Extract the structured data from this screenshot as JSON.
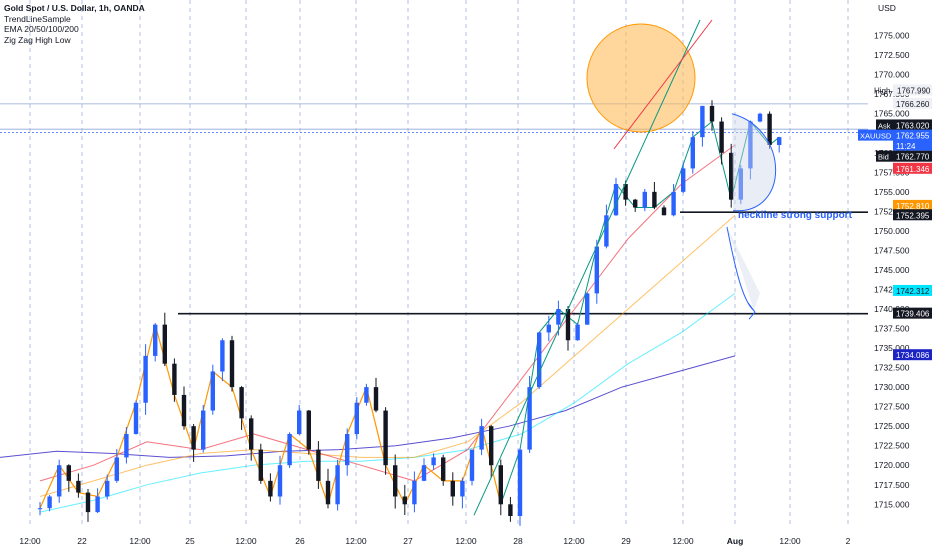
{
  "legend": {
    "title": "Gold Spot / U.S. Dollar, 1h, OANDA",
    "indicator1": "TrendLineSample",
    "indicator2": "EMA 20/50/100/200",
    "indicator3": "Zig Zag High Low"
  },
  "price_axis": {
    "currency": "USD",
    "ticks": [
      "1775.000",
      "1772.500",
      "1770.000",
      "1767.500",
      "1765.000",
      "1762.500",
      "1760.000",
      "1757.500",
      "1755.000",
      "1752.500",
      "1750.000",
      "1747.500",
      "1745.000",
      "1742.500",
      "1740.000",
      "1737.500",
      "1735.000",
      "1732.500",
      "1730.000",
      "1727.500",
      "1725.000",
      "1722.500",
      "1720.000",
      "1717.500",
      "1715.000"
    ],
    "high_label": "High",
    "high_value": "1767.990",
    "labels": [
      {
        "name": "level-1766",
        "text": "1766.260",
        "value": 1766.26,
        "bg": "#eef0f5",
        "fg": "#131722"
      },
      {
        "name": "ask",
        "tag": "Ask",
        "text": "1763.020",
        "value": 1763.5,
        "bg": "#131722",
        "fg": "#ffffff"
      },
      {
        "name": "last",
        "tag": "XAUUSD",
        "text": "1762.955",
        "value": 1762.2,
        "bg": "#2962ff",
        "fg": "#ffffff"
      },
      {
        "name": "countdown",
        "text": "11:24",
        "value": 1760.9,
        "bg": "#2962ff",
        "fg": "#ffffff"
      },
      {
        "name": "bid",
        "tag": "Bid",
        "text": "1762.770",
        "value": 1759.5,
        "bg": "#131722",
        "fg": "#ffffff"
      },
      {
        "name": "ema20",
        "text": "1761.346",
        "value": 1757.95,
        "bg": "#f23645",
        "fg": "#ffffff"
      },
      {
        "name": "ema50",
        "text": "1752.810",
        "value": 1753.2,
        "bg": "#ff9800",
        "fg": "#ffffff"
      },
      {
        "name": "support",
        "text": "1752.395",
        "value": 1752.0,
        "bg": "#131722",
        "fg": "#ffffff"
      },
      {
        "name": "ema100",
        "text": "1742.312",
        "value": 1742.312,
        "bg": "#00e5ff",
        "fg": "#131722"
      },
      {
        "name": "level-1739",
        "text": "1739.406",
        "value": 1739.406,
        "bg": "#131722",
        "fg": "#ffffff"
      },
      {
        "name": "ema200",
        "text": "1734.086",
        "value": 1734.086,
        "bg": "#1d24c4",
        "fg": "#ffffff"
      }
    ]
  },
  "time_axis": {
    "labels": [
      "12:00",
      "22",
      "12:00",
      "25",
      "12:00",
      "26",
      "12:00",
      "27",
      "12:00",
      "28",
      "12:00",
      "29",
      "12:00",
      "Aug",
      "12:00",
      "2"
    ]
  },
  "annotation": {
    "text": "neckline strong support"
  },
  "colors": {
    "bull": "#2962ff",
    "bear": "#131722",
    "ema20": "#f23645",
    "ema50": "#ff9800",
    "ema100": "#00e5ff",
    "ema200": "#5b4fcf",
    "zigzag": "#ff9800",
    "trend_green": "#089981",
    "trend_red": "#f23645",
    "circle": "#ffb74d"
  },
  "chart_data": {
    "type": "candlestick",
    "symbol": "XAUUSD",
    "timeframe": "1h",
    "ylim": [
      1713.5,
      1777
    ],
    "support_level": 1752.395,
    "resistance_level": 1739.406,
    "high": 1767.99,
    "x": [
      "12:00",
      "22",
      "12:00",
      "25",
      "12:00",
      "26",
      "12:00",
      "27",
      "12:00",
      "28",
      "12:00",
      "29",
      "12:00",
      "Aug"
    ],
    "candle_pivots": [
      1714.5,
      1716,
      1720,
      1718,
      1716.5,
      1714,
      1716,
      1718,
      1721,
      1724,
      1728,
      1734,
      1738,
      1733,
      1729,
      1725,
      1722,
      1727,
      1732,
      1736,
      1730,
      1726,
      1722,
      1718,
      1716,
      1720,
      1724,
      1727,
      1722,
      1718,
      1715,
      1720,
      1724,
      1728,
      1730,
      1727,
      1720,
      1716,
      1715,
      1718,
      1720,
      1721,
      1718,
      1716,
      1718,
      1722,
      1725,
      1720,
      1715,
      1713.5,
      1722,
      1730,
      1737,
      1738,
      1740,
      1736,
      1738,
      1742,
      1748,
      1752,
      1756,
      1754,
      1753,
      1755,
      1753,
      1752,
      1755,
      1758,
      1762,
      1766,
      1764,
      1760,
      1754,
      1758,
      1764,
      1765,
      1761,
      1762
    ],
    "ema200": [
      1721,
      1721.8,
      1721.5,
      1721,
      1721.2,
      1721.8,
      1722,
      1722.5,
      1723.5,
      1725,
      1727,
      1730,
      1732,
      1734
    ],
    "ema100": [
      1714,
      1715.5,
      1717.5,
      1719,
      1720,
      1720.5,
      1720.5,
      1721,
      1722,
      1724,
      1728,
      1733,
      1737,
      1742
    ],
    "ema50": [
      1716,
      1718,
      1720,
      1721.5,
      1722,
      1721.5,
      1721,
      1721,
      1723,
      1728,
      1734,
      1740,
      1746,
      1752
    ],
    "ema20": [
      1718,
      1720,
      1723,
      1722,
      1724,
      1722,
      1720,
      1718,
      1722,
      1731,
      1740,
      1749,
      1756,
      1761
    ]
  }
}
